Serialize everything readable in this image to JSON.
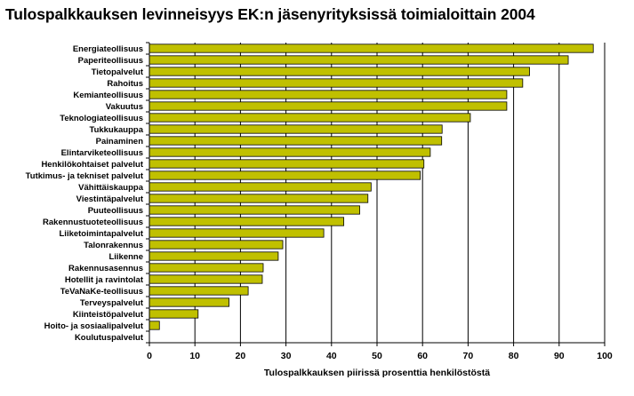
{
  "chart_data": {
    "type": "bar",
    "orientation": "horizontal",
    "title": "Tulospalkkauksen levinneisyys EK:n jäsenyrityksissä toimialoittain 2004",
    "xlabel": "Tulospalkkauksen piirissä prosenttia henkilöstöstä",
    "ylabel": "",
    "xlim": [
      0,
      100
    ],
    "xticks": [
      0,
      10,
      20,
      30,
      40,
      50,
      60,
      70,
      80,
      90,
      100
    ],
    "grid": "vertical",
    "bar_color": "#c0c000",
    "categories": [
      "Energiateollisuus",
      "Paperiteollisuus",
      "Tietopalvelut",
      "Rahoitus",
      "Kemianteollisuus",
      "Vakuutus",
      "Teknologiateollisuus",
      "Tukkukauppa",
      "Painaminen",
      "Elintarviketeollisuus",
      "Henkilökohtaiset palvelut",
      "Tutkimus- ja tekniset palvelut",
      "Vähittäiskauppa",
      "Viestintäpalvelut",
      "Puuteollisuus",
      "Rakennustuoteteollisuus",
      "Liiketoimintapalvelut",
      "Talonrakennus",
      "Liikenne",
      "Rakennusasennus",
      "Hotellit ja ravintolat",
      "TeVaNaKe-teollisuus",
      "Terveyspalvelut",
      "Kiinteistöpalvelut",
      "Hoito- ja sosiaalipalvelut",
      "Koulutuspalvelut"
    ],
    "values": [
      97.5,
      92,
      83.5,
      82,
      78.5,
      78.5,
      70.5,
      64.3,
      64.2,
      61.7,
      60.3,
      59.5,
      48.7,
      48,
      46.2,
      42.7,
      38.3,
      29.3,
      28.3,
      25,
      24.8,
      21.7,
      17.5,
      10.7,
      2.2,
      0
    ]
  }
}
